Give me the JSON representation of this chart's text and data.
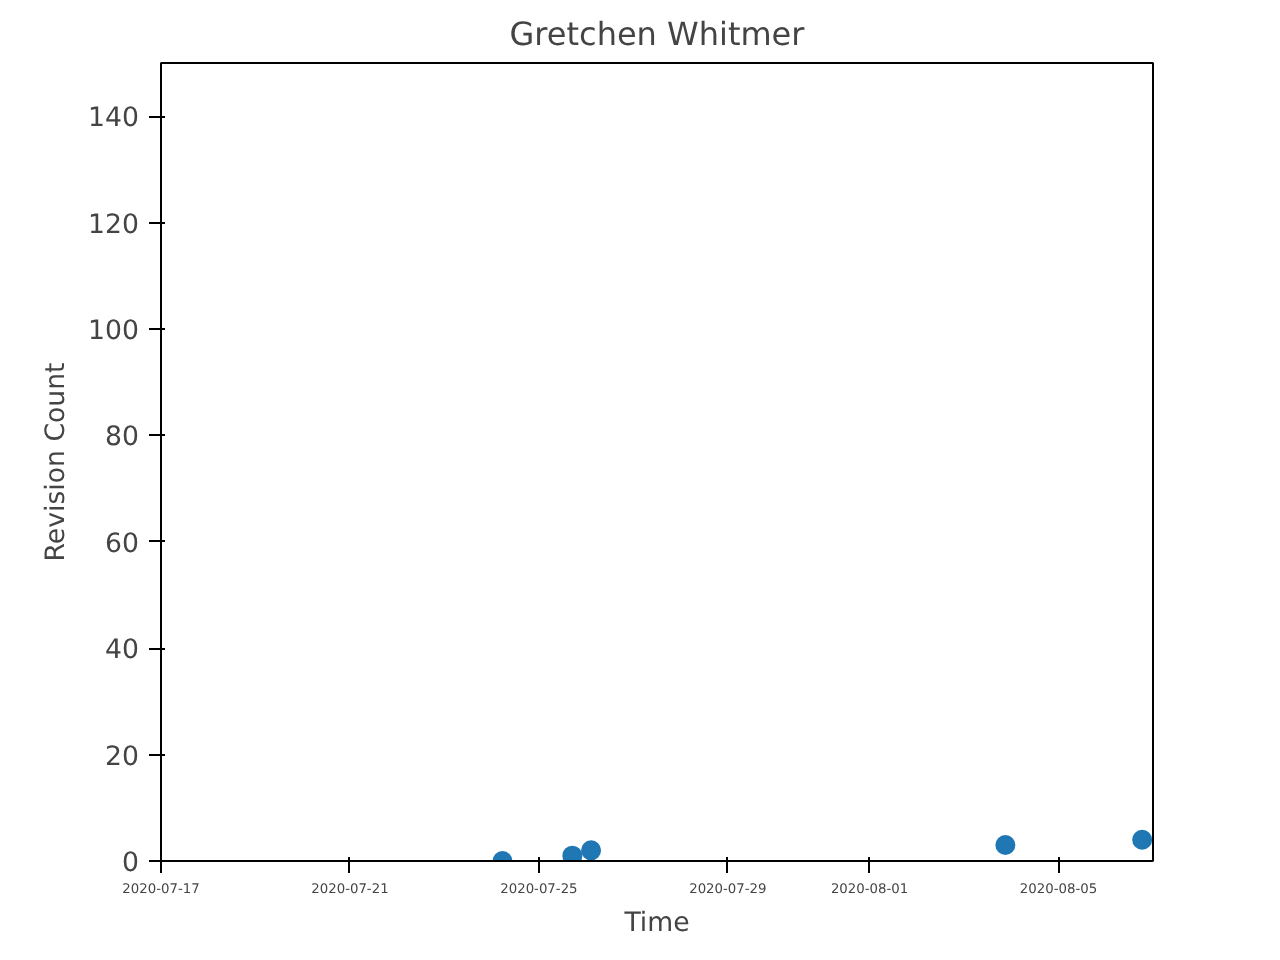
{
  "chart_data": {
    "type": "scatter",
    "title": "Gretchen Whitmer",
    "xlabel": "Time",
    "ylabel": "Revision Count",
    "x": [
      "2020-07-24T05:30",
      "2020-07-25T17:00",
      "2020-07-26T02:30",
      "2020-08-03T21:00",
      "2020-08-06T18:30"
    ],
    "series": [
      {
        "color": "#1f77b4",
        "values": [
          0,
          1,
          2,
          3,
          4
        ]
      }
    ],
    "marker": "circle",
    "grid": false,
    "xlim": [
      "2020-07-17",
      "2020-08-07"
    ],
    "xticks": [
      "2020-07-17",
      "2020-07-21",
      "2020-07-25",
      "2020-07-29",
      "2020-08-01",
      "2020-08-05"
    ],
    "ylim": [
      0,
      150
    ],
    "yticks": [
      0,
      20,
      40,
      60,
      80,
      100,
      120,
      140
    ]
  }
}
